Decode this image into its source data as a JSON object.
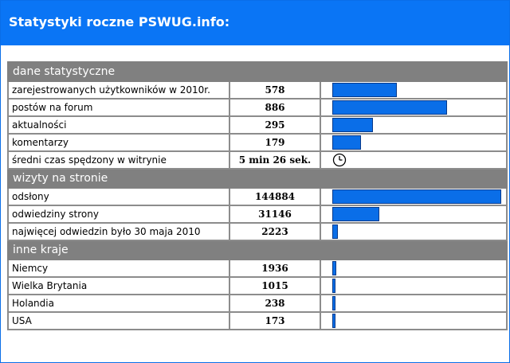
{
  "header": {
    "title": "Statystyki roczne PSWUG.info:"
  },
  "colors": {
    "accent": "#0a75f5",
    "section_bg": "#808080",
    "bar": "#0a6ee8"
  },
  "sections": [
    {
      "title": "dane statystyczne",
      "rows": [
        {
          "label": "zarejestrowanych użytkowników w 2010r.",
          "value": "578",
          "bar_fraction": 0.38
        },
        {
          "label": "postów na forum",
          "value": "886",
          "bar_fraction": 0.68
        },
        {
          "label": "aktualności",
          "value": "295",
          "bar_fraction": 0.24
        },
        {
          "label": "komentarzy",
          "value": "179",
          "bar_fraction": 0.17
        },
        {
          "label": "średni czas spędzony w witrynie",
          "value": "5 min 26 sek.",
          "icon": "clock-icon"
        }
      ]
    },
    {
      "title": "wizyty na stronie",
      "rows": [
        {
          "label": "odsłony",
          "value": "144884",
          "bar_fraction": 1.0
        },
        {
          "label": "odwiedziny strony",
          "value": "31146",
          "bar_fraction": 0.28
        },
        {
          "label": "najwięcej odwiedzin było 30 maja 2010",
          "value": "2223",
          "bar_fraction": 0.035
        }
      ]
    },
    {
      "title": "inne kraje",
      "rows": [
        {
          "label": "Niemcy",
          "value": "1936",
          "bar_fraction": 0.025
        },
        {
          "label": "Wielka  Brytania",
          "value": "1015",
          "bar_fraction": 0.018
        },
        {
          "label": "Holandia",
          "value": "238",
          "bar_fraction": 0.012
        },
        {
          "label": "USA",
          "value": "173",
          "bar_fraction": 0.012
        }
      ]
    }
  ]
}
